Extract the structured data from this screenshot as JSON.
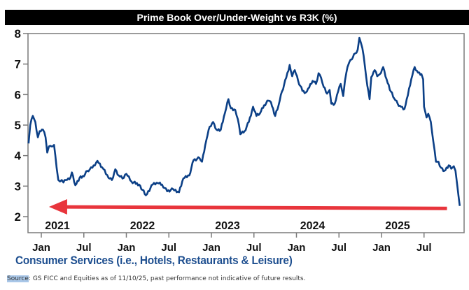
{
  "chart_data": {
    "type": "line",
    "title": "Prime Book Over/Under-Weight vs R3K (%)",
    "subtitle": "Consumer Services (i.e., Hotels, Restaurants & Leisure)",
    "xlabel": "",
    "ylabel": "",
    "ylim": [
      1.5,
      8
    ],
    "xlim": [
      2020.85,
      2025.87
    ],
    "yticks": [
      2,
      3,
      4,
      5,
      6,
      7,
      8
    ],
    "ytick_labels": [
      "2",
      "3",
      "4",
      "5",
      "6",
      "7",
      "8"
    ],
    "xticks": [
      {
        "x": 2021.0,
        "label": "Jan"
      },
      {
        "x": 2021.5,
        "label": "Jul"
      },
      {
        "x": 2022.0,
        "label": "Jan"
      },
      {
        "x": 2022.5,
        "label": "Jul"
      },
      {
        "x": 2023.0,
        "label": "Jan"
      },
      {
        "x": 2023.5,
        "label": "Jul"
      },
      {
        "x": 2024.0,
        "label": "Jan"
      },
      {
        "x": 2024.5,
        "label": "Jul"
      },
      {
        "x": 2025.0,
        "label": "Jan"
      },
      {
        "x": 2025.5,
        "label": "Jul"
      }
    ],
    "year_labels": [
      {
        "x": 2021.0,
        "label": "2021"
      },
      {
        "x": 2022.0,
        "label": "2022"
      },
      {
        "x": 2023.0,
        "label": "2023"
      },
      {
        "x": 2024.0,
        "label": "2024"
      },
      {
        "x": 2025.0,
        "label": "2025"
      }
    ],
    "grid": false,
    "legend": "none",
    "series": [
      {
        "name": "Consumer Services",
        "color": "#0b3f86",
        "x": [
          2020.85,
          2020.87,
          2020.9,
          2020.93,
          2020.96,
          2020.98,
          2021.02,
          2021.05,
          2021.07,
          2021.09,
          2021.12,
          2021.15,
          2021.18,
          2021.2,
          2021.22,
          2021.24,
          2021.26,
          2021.29,
          2021.33,
          2021.36,
          2021.4,
          2021.45,
          2021.5,
          2021.54,
          2021.6,
          2021.66,
          2021.73,
          2021.79,
          2021.83,
          2021.87,
          2021.91,
          2021.97,
          2022.0,
          2022.06,
          2022.15,
          2022.23,
          2022.31,
          2022.37,
          2022.42,
          2022.48,
          2022.55,
          2022.62,
          2022.67,
          2022.74,
          2022.79,
          2022.86,
          2022.89,
          2022.94,
          2022.98,
          2023.02,
          2023.06,
          2023.11,
          2023.16,
          2023.2,
          2023.23,
          2023.28,
          2023.31,
          2023.34,
          2023.39,
          2023.44,
          2023.49,
          2023.53,
          2023.57,
          2023.62,
          2023.67,
          2023.7,
          2023.75,
          2023.79,
          2023.83,
          2023.88,
          2023.92,
          2023.95,
          2023.98,
          2024.02,
          2024.07,
          2024.11,
          2024.15,
          2024.19,
          2024.23,
          2024.26,
          2024.29,
          2024.32,
          2024.36,
          2024.39,
          2024.41,
          2024.45,
          2024.49,
          2024.52,
          2024.55,
          2024.57,
          2024.6,
          2024.62,
          2024.65,
          2024.69,
          2024.72,
          2024.74,
          2024.76,
          2024.79,
          2024.82,
          2024.86,
          2024.88,
          2024.92,
          2024.95,
          2024.98,
          2025.02,
          2025.06,
          2025.11,
          2025.15,
          2025.19,
          2025.23,
          2025.27,
          2025.31,
          2025.35,
          2025.39,
          2025.43,
          2025.47,
          2025.49,
          2025.5,
          2025.53,
          2025.55,
          2025.58,
          2025.61,
          2025.64,
          2025.67,
          2025.7,
          2025.74,
          2025.79,
          2025.82,
          2025.85,
          2025.87,
          2025.89,
          2025.92
        ],
        "y": [
          4.4,
          5.0,
          5.3,
          5.1,
          4.6,
          4.8,
          4.85,
          4.6,
          4.1,
          4.3,
          4.3,
          4.35,
          3.6,
          3.2,
          3.15,
          3.2,
          3.12,
          3.2,
          3.22,
          3.45,
          3.03,
          3.27,
          3.32,
          3.5,
          3.6,
          3.83,
          3.56,
          3.27,
          3.2,
          3.55,
          3.35,
          3.27,
          3.4,
          3.15,
          3.05,
          2.7,
          3.05,
          3.1,
          3.05,
          2.83,
          2.9,
          2.8,
          3.25,
          3.35,
          3.85,
          3.92,
          3.8,
          4.5,
          4.95,
          5.1,
          4.85,
          4.85,
          5.4,
          5.85,
          5.55,
          5.5,
          5.2,
          4.7,
          4.8,
          5.1,
          5.6,
          5.3,
          5.38,
          5.65,
          5.8,
          5.75,
          5.3,
          5.65,
          6.1,
          6.55,
          6.97,
          6.6,
          6.8,
          6.45,
          6.12,
          6.07,
          6.23,
          6.45,
          6.35,
          6.7,
          6.55,
          6.25,
          6.03,
          6.15,
          5.7,
          5.7,
          6.1,
          6.35,
          5.95,
          6.45,
          6.9,
          7.05,
          7.15,
          7.35,
          7.47,
          7.86,
          7.68,
          7.27,
          6.58,
          5.85,
          6.57,
          6.8,
          6.6,
          6.67,
          6.9,
          6.5,
          6.1,
          5.87,
          5.7,
          5.6,
          5.53,
          5.98,
          6.5,
          6.9,
          6.72,
          6.67,
          6.5,
          5.6,
          5.25,
          5.37,
          5.1,
          4.45,
          3.8,
          3.8,
          3.6,
          3.5,
          3.68,
          3.57,
          3.65,
          3.5,
          3.05,
          2.35
        ]
      }
    ],
    "annotations": [
      {
        "type": "arrow",
        "color": "#e8353c",
        "from": {
          "x": 2025.77,
          "y": 2.27
        },
        "to": {
          "x": 2021.09,
          "y": 2.32
        },
        "direction": "left"
      }
    ]
  },
  "footer": {
    "source_label": "Source",
    "source_text": ": GS FICC and Equities as of 11/10/25, past performance not indicative of future results."
  }
}
